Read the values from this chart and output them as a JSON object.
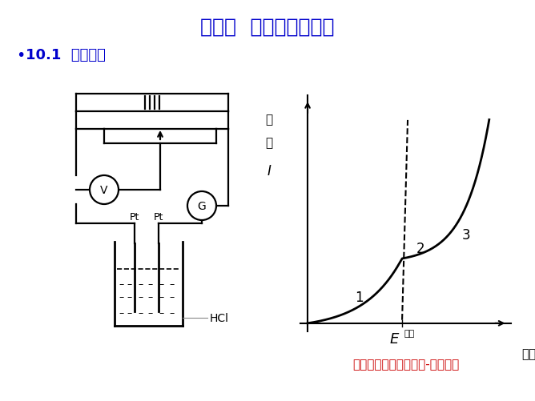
{
  "title": "第十章  电解与极化作用",
  "subtitle": "10.1  分解电压",
  "title_color": "#0000CC",
  "subtitle_color": "#0000CC",
  "background_color": "#FFFFFF",
  "curve_caption": "测定分解电压时的电流-电压曲线",
  "curve_caption_color": "#CC0000",
  "HCl_label": "HCl",
  "Pt_label": "Pt",
  "V_label": "V",
  "G_label": "G",
  "ylabel_1": "电",
  "ylabel_2": "流",
  "ylabel_3": "I",
  "xlabel_cn": "电压",
  "xlabel_e": "E",
  "Ed_cn": "分解",
  "point1": "1",
  "point2": "2",
  "point3": "3"
}
